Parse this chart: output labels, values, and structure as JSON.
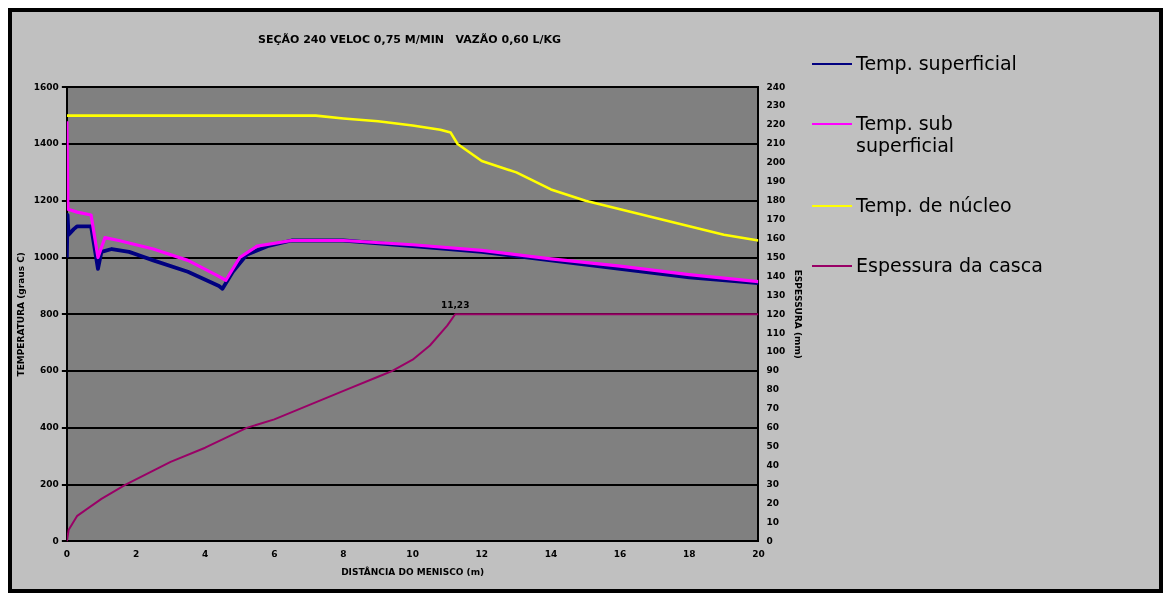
{
  "chart_data": {
    "type": "line",
    "title": "SEÇÃO 240 VELOC 0,75 M/MIN   VAZÃO 0,60 L/KG",
    "xlabel": "DISTÂNCIA DO MENISCO (m)",
    "ylabel": "TEMPERATURA (graus C)",
    "y2label": "ESPESSURA (mm)",
    "xlim": [
      0,
      20
    ],
    "xticks": [
      0,
      2,
      4,
      6,
      8,
      10,
      12,
      14,
      16,
      18,
      20
    ],
    "ylim": [
      0,
      1600
    ],
    "yticks": [
      0,
      200,
      400,
      600,
      800,
      1000,
      1200,
      1400,
      1600
    ],
    "y2lim": [
      0,
      240
    ],
    "y2ticks": [
      0,
      10,
      20,
      30,
      40,
      50,
      60,
      70,
      80,
      90,
      100,
      110,
      120,
      130,
      140,
      150,
      160,
      170,
      180,
      190,
      200,
      210,
      220,
      230,
      240
    ],
    "grid": "y",
    "legend": "right",
    "marker": "none",
    "line_style": "solid",
    "annotations": [
      {
        "text": "11,23",
        "x": 11.23,
        "y": 800
      }
    ],
    "series": [
      {
        "name": "Temp. superficial",
        "color": "#000080",
        "x": [
          0,
          0.02,
          0.05,
          0.2,
          0.3,
          0.7,
          0.9,
          1,
          1.3,
          1.8,
          2.5,
          3.5,
          4.4,
          4.5,
          4.8,
          5.2,
          5.8,
          6.5,
          8,
          10,
          12,
          14,
          16,
          18,
          20
        ],
        "values": [
          1000,
          1150,
          1080,
          1100,
          1110,
          1110,
          960,
          1020,
          1030,
          1020,
          990,
          950,
          900,
          890,
          950,
          1010,
          1040,
          1060,
          1060,
          1040,
          1020,
          990,
          960,
          930,
          910
        ]
      },
      {
        "name": "Temp. sub superficial",
        "color": "#ff00ff",
        "x": [
          0,
          0.03,
          0.3,
          0.7,
          0.9,
          1.1,
          1.5,
          2.5,
          3.5,
          4.3,
          4.6,
          5,
          5.5,
          6.5,
          8,
          10,
          12,
          14,
          16,
          18,
          20
        ],
        "values": [
          1480,
          1170,
          1160,
          1150,
          1000,
          1070,
          1060,
          1030,
          990,
          940,
          920,
          1000,
          1040,
          1060,
          1060,
          1045,
          1025,
          995,
          970,
          940,
          915
        ]
      },
      {
        "name": "Temp. de núcleo",
        "color": "#ffff00",
        "x": [
          0,
          7.2,
          8,
          9,
          10,
          10.8,
          11.1,
          11.3,
          12,
          13,
          14,
          15,
          16,
          17,
          18,
          19,
          20
        ],
        "values": [
          1500,
          1500,
          1490,
          1480,
          1465,
          1450,
          1440,
          1400,
          1340,
          1300,
          1240,
          1200,
          1170,
          1140,
          1110,
          1080,
          1060
        ]
      },
      {
        "name": "Espessura da casca",
        "color": "#990066",
        "axis": "y2",
        "x": [
          0,
          0.05,
          0.3,
          1,
          1.7,
          3,
          4,
          5.2,
          6,
          7,
          8,
          9,
          9.4,
          10,
          10.5,
          11,
          11.23,
          20
        ],
        "values": [
          0,
          6,
          13.5,
          22.5,
          30,
          42,
          49.5,
          60,
          64.5,
          72,
          79.5,
          87,
          90,
          96,
          103.5,
          114,
          120,
          120
        ]
      }
    ]
  }
}
